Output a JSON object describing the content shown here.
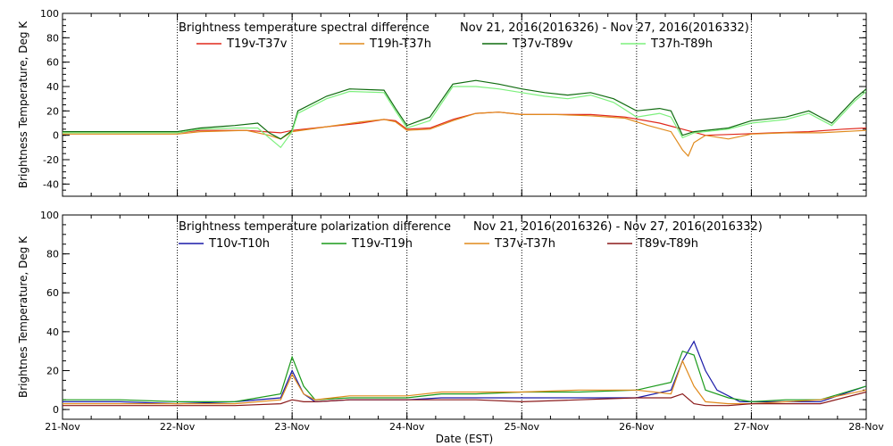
{
  "chart_data": [
    {
      "type": "line",
      "title": "Brightness temperature spectral difference",
      "date_range": "Nov 21, 2016(2016326) - Nov 27, 2016(2016332)",
      "ylabel": "Brightness Temperature, Deg K",
      "xlabel": "",
      "ylim": [
        -50,
        100
      ],
      "yticks": [
        -40,
        -20,
        0,
        20,
        40,
        60,
        80,
        100
      ],
      "xlim": [
        0,
        7
      ],
      "xticks": [
        "21-Nov",
        "22-Nov",
        "23-Nov",
        "24-Nov",
        "25-Nov",
        "26-Nov",
        "27-Nov",
        "28-Nov"
      ],
      "grid": "vertical dotted at day boundaries",
      "legend_position": "top",
      "series": [
        {
          "name": "T19v-T37v",
          "color": "#e0281c",
          "points": [
            [
              0,
              2
            ],
            [
              0.5,
              2
            ],
            [
              1,
              2
            ],
            [
              1.2,
              4
            ],
            [
              1.6,
              4
            ],
            [
              1.9,
              2
            ],
            [
              2.0,
              4
            ],
            [
              2.3,
              7
            ],
            [
              2.6,
              10
            ],
            [
              2.8,
              13
            ],
            [
              2.9,
              12
            ],
            [
              3.0,
              5
            ],
            [
              3.2,
              6
            ],
            [
              3.4,
              13
            ],
            [
              3.6,
              18
            ],
            [
              3.8,
              19
            ],
            [
              4.0,
              17
            ],
            [
              4.3,
              17
            ],
            [
              4.6,
              17
            ],
            [
              4.9,
              15
            ],
            [
              5.2,
              10
            ],
            [
              5.4,
              5
            ],
            [
              5.6,
              0
            ],
            [
              5.9,
              1
            ],
            [
              6.2,
              2
            ],
            [
              6.5,
              3
            ],
            [
              6.8,
              5
            ],
            [
              7,
              6
            ]
          ]
        },
        {
          "name": "T19h-T37h",
          "color": "#e08a1c",
          "points": [
            [
              0,
              1
            ],
            [
              0.5,
              1
            ],
            [
              1,
              1
            ],
            [
              1.2,
              3
            ],
            [
              1.6,
              4
            ],
            [
              1.8,
              0
            ],
            [
              1.9,
              -3
            ],
            [
              2.0,
              3
            ],
            [
              2.3,
              7
            ],
            [
              2.6,
              11
            ],
            [
              2.8,
              13
            ],
            [
              2.9,
              11
            ],
            [
              3.0,
              4
            ],
            [
              3.2,
              5
            ],
            [
              3.4,
              12
            ],
            [
              3.6,
              18
            ],
            [
              3.8,
              19
            ],
            [
              4.0,
              17
            ],
            [
              4.3,
              17
            ],
            [
              4.6,
              16
            ],
            [
              4.9,
              14
            ],
            [
              5.1,
              8
            ],
            [
              5.3,
              3
            ],
            [
              5.4,
              -12
            ],
            [
              5.45,
              -17
            ],
            [
              5.5,
              -6
            ],
            [
              5.6,
              0
            ],
            [
              5.8,
              -3
            ],
            [
              6.0,
              1
            ],
            [
              6.3,
              2
            ],
            [
              6.6,
              2
            ],
            [
              7,
              4
            ]
          ]
        },
        {
          "name": "T37v-T89v",
          "color": "#0f6b0f",
          "points": [
            [
              0,
              3
            ],
            [
              0.5,
              3
            ],
            [
              1,
              3
            ],
            [
              1.2,
              6
            ],
            [
              1.5,
              8
            ],
            [
              1.7,
              10
            ],
            [
              1.8,
              2
            ],
            [
              1.9,
              -3
            ],
            [
              2.0,
              4
            ],
            [
              2.05,
              20
            ],
            [
              2.3,
              32
            ],
            [
              2.5,
              38
            ],
            [
              2.8,
              37
            ],
            [
              2.9,
              22
            ],
            [
              3.0,
              8
            ],
            [
              3.2,
              15
            ],
            [
              3.4,
              42
            ],
            [
              3.6,
              45
            ],
            [
              3.8,
              42
            ],
            [
              4.0,
              38
            ],
            [
              4.2,
              35
            ],
            [
              4.4,
              33
            ],
            [
              4.6,
              35
            ],
            [
              4.8,
              30
            ],
            [
              5.0,
              20
            ],
            [
              5.2,
              22
            ],
            [
              5.3,
              20
            ],
            [
              5.4,
              0
            ],
            [
              5.5,
              3
            ],
            [
              5.8,
              6
            ],
            [
              6.0,
              12
            ],
            [
              6.3,
              15
            ],
            [
              6.5,
              20
            ],
            [
              6.7,
              10
            ],
            [
              6.9,
              30
            ],
            [
              7,
              38
            ]
          ]
        },
        {
          "name": "T37h-T89h",
          "color": "#7cf07c",
          "points": [
            [
              0,
              2
            ],
            [
              0.5,
              2
            ],
            [
              1,
              2
            ],
            [
              1.2,
              5
            ],
            [
              1.5,
              6
            ],
            [
              1.7,
              6
            ],
            [
              1.8,
              -2
            ],
            [
              1.9,
              -10
            ],
            [
              2.0,
              3
            ],
            [
              2.05,
              18
            ],
            [
              2.3,
              30
            ],
            [
              2.5,
              36
            ],
            [
              2.8,
              35
            ],
            [
              2.9,
              20
            ],
            [
              3.0,
              6
            ],
            [
              3.2,
              12
            ],
            [
              3.4,
              40
            ],
            [
              3.6,
              40
            ],
            [
              3.8,
              38
            ],
            [
              4.0,
              35
            ],
            [
              4.2,
              32
            ],
            [
              4.4,
              30
            ],
            [
              4.6,
              33
            ],
            [
              4.8,
              27
            ],
            [
              5.0,
              15
            ],
            [
              5.2,
              18
            ],
            [
              5.3,
              15
            ],
            [
              5.4,
              -2
            ],
            [
              5.5,
              2
            ],
            [
              5.8,
              5
            ],
            [
              6.0,
              10
            ],
            [
              6.3,
              13
            ],
            [
              6.5,
              18
            ],
            [
              6.7,
              8
            ],
            [
              6.9,
              28
            ],
            [
              7,
              36
            ]
          ]
        }
      ]
    },
    {
      "type": "line",
      "title": "Brightness temperature polarization difference",
      "date_range": "Nov 21, 2016(2016326) - Nov 27, 2016(2016332)",
      "ylabel": "Brightnes Temperature, Deg K",
      "xlabel": "Date (EST)",
      "ylim": [
        -5,
        100
      ],
      "yticks": [
        0,
        20,
        40,
        60,
        80,
        100
      ],
      "xlim": [
        0,
        7
      ],
      "xticks": [
        "21-Nov",
        "22-Nov",
        "23-Nov",
        "24-Nov",
        "25-Nov",
        "26-Nov",
        "27-Nov",
        "28-Nov"
      ],
      "grid": "vertical dotted at day boundaries",
      "legend_position": "top",
      "series": [
        {
          "name": "T10v-T10h",
          "color": "#1a1aa8",
          "points": [
            [
              0,
              4
            ],
            [
              0.5,
              4
            ],
            [
              1,
              3
            ],
            [
              1.5,
              4
            ],
            [
              1.9,
              6
            ],
            [
              2.0,
              20
            ],
            [
              2.1,
              8
            ],
            [
              2.2,
              4
            ],
            [
              2.5,
              5
            ],
            [
              3.0,
              5
            ],
            [
              3.3,
              6
            ],
            [
              3.6,
              6
            ],
            [
              4.0,
              6
            ],
            [
              4.5,
              6
            ],
            [
              5.0,
              6
            ],
            [
              5.3,
              10
            ],
            [
              5.4,
              25
            ],
            [
              5.5,
              35
            ],
            [
              5.6,
              20
            ],
            [
              5.7,
              10
            ],
            [
              5.9,
              4
            ],
            [
              6.3,
              4
            ],
            [
              6.6,
              4
            ],
            [
              7,
              12
            ]
          ]
        },
        {
          "name": "T19v-T19h",
          "color": "#1a9a1a",
          "points": [
            [
              0,
              5
            ],
            [
              0.5,
              5
            ],
            [
              1,
              4
            ],
            [
              1.5,
              4
            ],
            [
              1.9,
              8
            ],
            [
              2.0,
              27
            ],
            [
              2.1,
              12
            ],
            [
              2.2,
              5
            ],
            [
              2.5,
              6
            ],
            [
              3.0,
              6
            ],
            [
              3.3,
              8
            ],
            [
              3.6,
              8
            ],
            [
              4.0,
              9
            ],
            [
              4.5,
              9
            ],
            [
              5.0,
              10
            ],
            [
              5.3,
              14
            ],
            [
              5.4,
              30
            ],
            [
              5.5,
              28
            ],
            [
              5.6,
              10
            ],
            [
              5.8,
              6
            ],
            [
              6.0,
              4
            ],
            [
              6.3,
              5
            ],
            [
              6.6,
              5
            ],
            [
              7,
              12
            ]
          ]
        },
        {
          "name": "T37v-T37h",
          "color": "#e08a1c",
          "points": [
            [
              0,
              3
            ],
            [
              0.5,
              3
            ],
            [
              1,
              3
            ],
            [
              1.5,
              3
            ],
            [
              1.9,
              5
            ],
            [
              2.0,
              18
            ],
            [
              2.1,
              8
            ],
            [
              2.2,
              5
            ],
            [
              2.5,
              7
            ],
            [
              3.0,
              7
            ],
            [
              3.3,
              9
            ],
            [
              3.6,
              9
            ],
            [
              4.0,
              9
            ],
            [
              4.5,
              10
            ],
            [
              5.0,
              10
            ],
            [
              5.3,
              8
            ],
            [
              5.4,
              25
            ],
            [
              5.5,
              12
            ],
            [
              5.6,
              4
            ],
            [
              5.8,
              3
            ],
            [
              6.0,
              3
            ],
            [
              6.3,
              4
            ],
            [
              6.6,
              5
            ],
            [
              7,
              10
            ]
          ]
        },
        {
          "name": "T89v-T89h",
          "color": "#8b1a1a",
          "points": [
            [
              0,
              2
            ],
            [
              0.5,
              2
            ],
            [
              1,
              2
            ],
            [
              1.5,
              2
            ],
            [
              1.9,
              3
            ],
            [
              2.0,
              5
            ],
            [
              2.1,
              4
            ],
            [
              2.2,
              4
            ],
            [
              2.5,
              5
            ],
            [
              3.0,
              5
            ],
            [
              3.3,
              5
            ],
            [
              3.6,
              5
            ],
            [
              4.0,
              4
            ],
            [
              4.5,
              5
            ],
            [
              5.0,
              6
            ],
            [
              5.3,
              6
            ],
            [
              5.4,
              8
            ],
            [
              5.5,
              3
            ],
            [
              5.6,
              2
            ],
            [
              5.8,
              2
            ],
            [
              6.0,
              3
            ],
            [
              6.3,
              3
            ],
            [
              6.6,
              3
            ],
            [
              7,
              9
            ]
          ]
        }
      ]
    }
  ]
}
